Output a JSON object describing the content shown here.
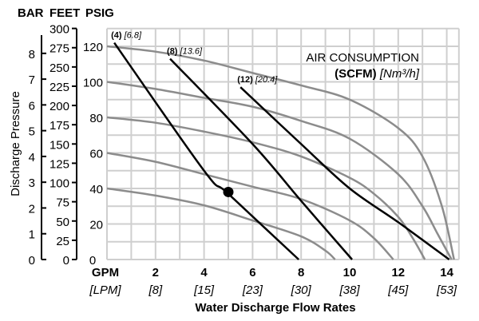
{
  "chart_data": {
    "type": "line",
    "title": "",
    "xlabel": "Water Discharge Flow Rates",
    "ylabel": "Discharge Pressure",
    "x_unit_label": "GPM",
    "x_alt_unit_label": "[LPM]",
    "x_ticks": [
      2,
      4,
      6,
      8,
      10,
      12,
      14
    ],
    "x_alt_ticks": [
      "[8]",
      "[15]",
      "[23]",
      "[30]",
      "[38]",
      "[45]",
      "[53]"
    ],
    "xlim": [
      0,
      14.5
    ],
    "ylim": [
      0,
      130
    ],
    "grid": true,
    "y_axes": [
      {
        "label": "BAR",
        "ticks": [
          0,
          1,
          2,
          3,
          4,
          5,
          6,
          7,
          8
        ]
      },
      {
        "label": "FEET",
        "ticks": [
          0,
          25,
          50,
          75,
          100,
          125,
          150,
          175,
          200,
          225,
          250,
          275,
          300
        ]
      },
      {
        "label": "PSIG",
        "ticks": [
          20,
          40,
          60,
          80,
          100,
          120
        ]
      }
    ],
    "legend_title": "AIR CONSUMPTION",
    "legend_unit_bold": "(SCFM)",
    "legend_unit_italic": "[Nm³/h]",
    "pressure_curves": [
      {
        "name": "120 psig air",
        "x": [
          0,
          2,
          4,
          6,
          8,
          10,
          12,
          13,
          13.8,
          14.3
        ],
        "y": [
          120,
          117,
          112,
          105,
          98,
          90,
          74,
          58,
          30,
          0
        ]
      },
      {
        "name": "100 psig air",
        "x": [
          0,
          2,
          4,
          6,
          8,
          10,
          12,
          13,
          13.6,
          14.2
        ],
        "y": [
          100,
          96,
          91,
          86,
          78,
          68,
          48,
          30,
          15,
          0
        ]
      },
      {
        "name": "80 psig air",
        "x": [
          0,
          2,
          4,
          6,
          8,
          10,
          11,
          12,
          12.6,
          13.1
        ],
        "y": [
          80,
          77,
          72,
          66,
          58,
          46,
          37,
          24,
          12,
          0
        ]
      },
      {
        "name": "60 psig air",
        "x": [
          0,
          2,
          4,
          6,
          8,
          10,
          11,
          11.8
        ],
        "y": [
          60,
          55,
          48,
          41,
          34,
          22,
          12,
          0
        ]
      },
      {
        "name": "40 psig air",
        "x": [
          0,
          2,
          4,
          6,
          8,
          9,
          9.4
        ],
        "y": [
          40,
          36,
          30.5,
          22,
          13,
          5,
          0
        ]
      }
    ],
    "air_consumption_lines": [
      {
        "label": "(4)",
        "label_alt": "[6.8]",
        "x": [
          0.3,
          4,
          5,
          7.9
        ],
        "y": [
          122,
          50,
          37,
          0
        ]
      },
      {
        "label": "(8)",
        "label_alt": "[13.6]",
        "x": [
          2.6,
          6,
          8,
          10.1
        ],
        "y": [
          113,
          65,
          33,
          0
        ]
      },
      {
        "label": "(12)",
        "label_alt": "[20.4]",
        "x": [
          5.5,
          8,
          10,
          12,
          14.1
        ],
        "y": [
          97,
          65,
          40,
          21,
          0
        ]
      }
    ],
    "operating_point": {
      "x": 5.0,
      "y": 38
    }
  }
}
